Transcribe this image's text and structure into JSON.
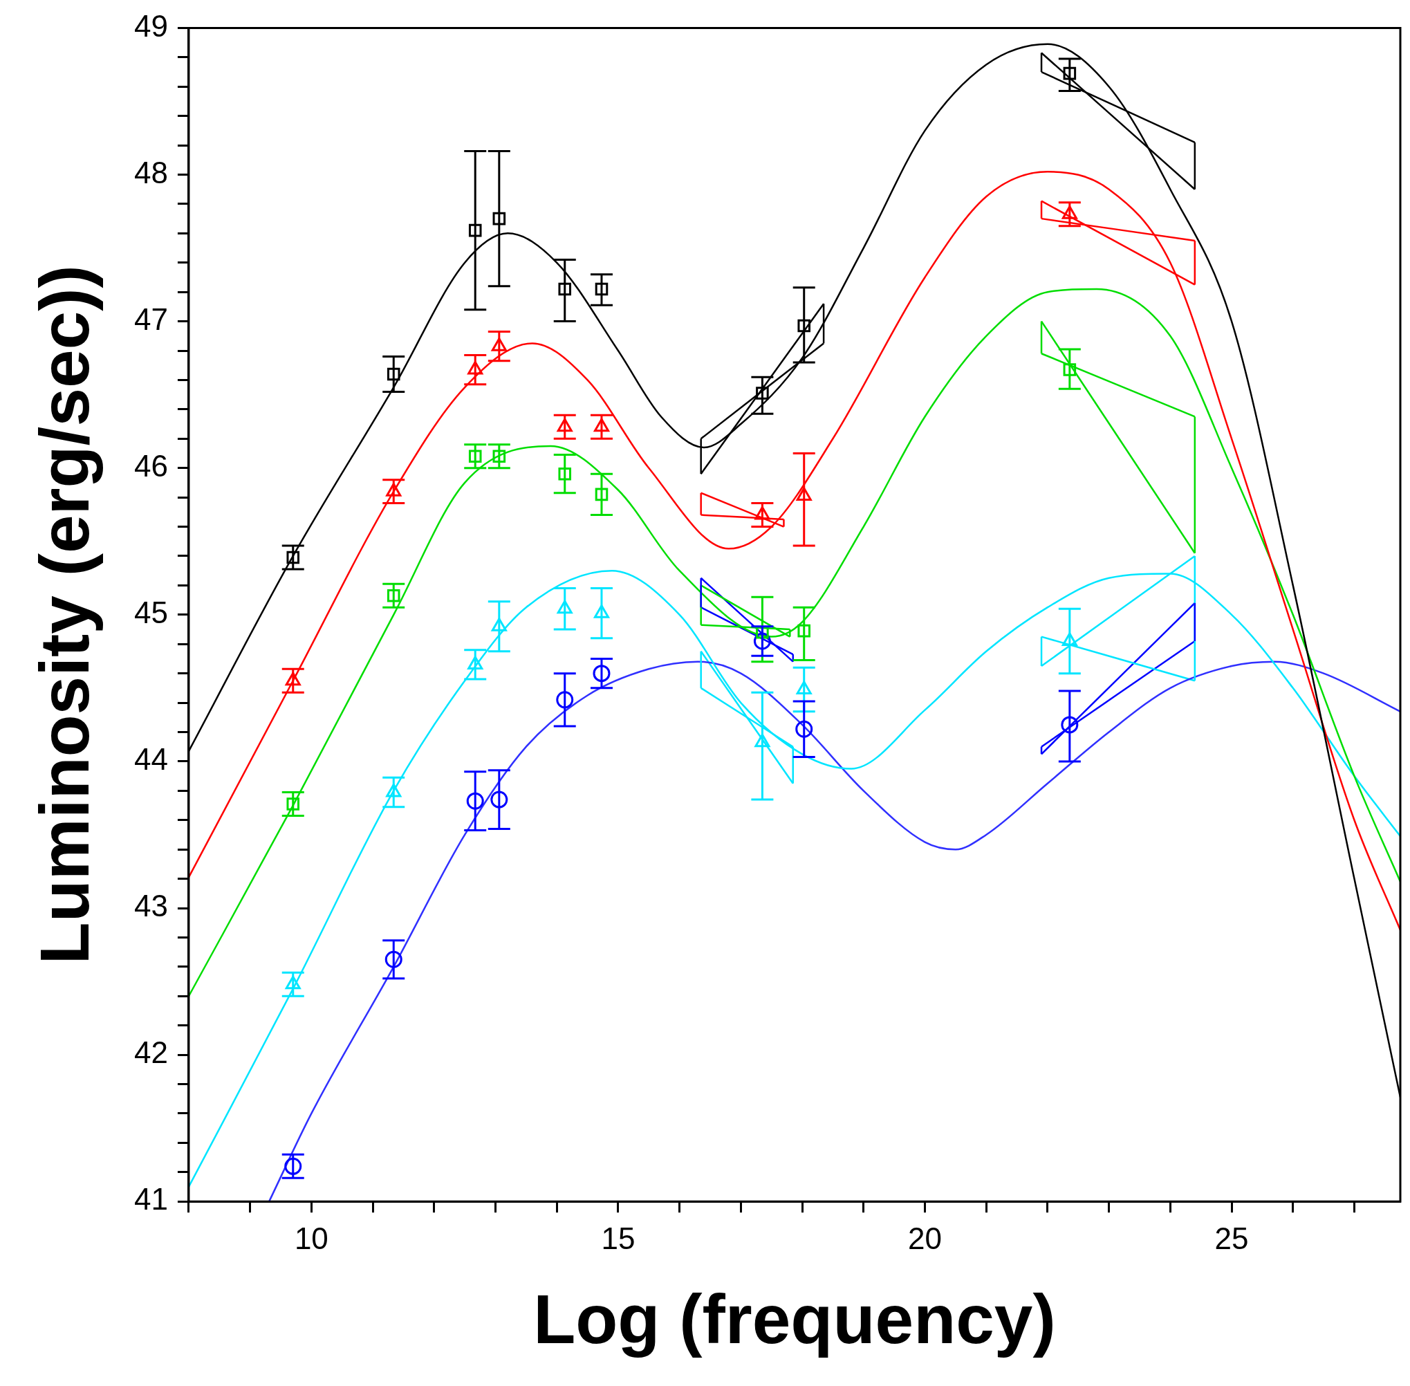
{
  "chart_data": {
    "type": "scatter",
    "xlabel": "Log (frequency)",
    "ylabel": "Luminosity (erg/sec))",
    "xlim": [
      8,
      27.75
    ],
    "ylim": [
      41,
      49
    ],
    "xticks": [
      {
        "value": 8,
        "label": null
      },
      {
        "value": 9,
        "label": null
      },
      10,
      {
        "value": 11,
        "label": null
      },
      {
        "value": 12,
        "label": null
      },
      {
        "value": 13,
        "label": null
      },
      {
        "value": 14,
        "label": null
      },
      15,
      {
        "value": 16,
        "label": null
      },
      {
        "value": 17,
        "label": null
      },
      {
        "value": 18,
        "label": null
      },
      {
        "value": 19,
        "label": null
      },
      20,
      {
        "value": 21,
        "label": null
      },
      {
        "value": 22,
        "label": null
      },
      {
        "value": 23,
        "label": null
      },
      {
        "value": 24,
        "label": null
      },
      25,
      {
        "value": 26,
        "label": null
      },
      {
        "value": 27,
        "label": null
      }
    ],
    "yticks": [
      41,
      {
        "value": 41.2,
        "label": null
      },
      {
        "value": 41.4,
        "label": null
      },
      {
        "value": 41.6,
        "label": null
      },
      {
        "value": 41.8,
        "label": null
      },
      42,
      {
        "value": 42.2,
        "label": null
      },
      {
        "value": 42.4,
        "label": null
      },
      {
        "value": 42.6,
        "label": null
      },
      {
        "value": 42.8,
        "label": null
      },
      43,
      {
        "value": 43.2,
        "label": null
      },
      {
        "value": 43.4,
        "label": null
      },
      {
        "value": 43.6,
        "label": null
      },
      {
        "value": 43.8,
        "label": null
      },
      44,
      {
        "value": 44.2,
        "label": null
      },
      {
        "value": 44.4,
        "label": null
      },
      {
        "value": 44.6,
        "label": null
      },
      {
        "value": 44.8,
        "label": null
      },
      45,
      {
        "value": 45.2,
        "label": null
      },
      {
        "value": 45.4,
        "label": null
      },
      {
        "value": 45.6,
        "label": null
      },
      {
        "value": 45.8,
        "label": null
      },
      46,
      {
        "value": 46.2,
        "label": null
      },
      {
        "value": 46.4,
        "label": null
      },
      {
        "value": 46.6,
        "label": null
      },
      {
        "value": 46.8,
        "label": null
      },
      47,
      {
        "value": 47.2,
        "label": null
      },
      {
        "value": 47.4,
        "label": null
      },
      {
        "value": 47.6,
        "label": null
      },
      {
        "value": 47.8,
        "label": null
      },
      48,
      {
        "value": 48.2,
        "label": null
      },
      {
        "value": 48.4,
        "label": null
      },
      {
        "value": 48.6,
        "label": null
      },
      {
        "value": 48.8,
        "label": null
      },
      49
    ],
    "x": [
      9.7,
      11.34,
      12.67,
      13.06,
      14.13,
      14.73,
      17.35,
      18.03,
      22.36
    ],
    "grid": false,
    "legend": false,
    "series": [
      {
        "type": "line",
        "color": "#000000",
        "x": [
          8,
          9.7,
          11.34,
          12.5,
          13.2,
          14,
          15,
          15.7,
          16.4,
          17,
          18,
          19,
          20,
          21,
          22,
          23,
          24,
          25,
          26,
          27,
          27.75
        ],
        "values": [
          44.07,
          45.4,
          46.55,
          47.4,
          47.6,
          47.4,
          46.8,
          46.35,
          46.14,
          46.3,
          46.75,
          47.5,
          48.3,
          48.75,
          48.89,
          48.6,
          47.9,
          47,
          45.2,
          43.2,
          41.71
        ]
      },
      {
        "type": "line",
        "color": "#ff0000",
        "x": [
          8,
          9.7,
          11.34,
          12.5,
          13.6,
          14.5,
          15.5,
          16.8,
          17.5,
          18.5,
          20,
          21,
          22,
          23,
          24,
          25,
          26,
          27,
          27.75
        ],
        "values": [
          43.21,
          44.55,
          45.84,
          46.55,
          46.85,
          46.6,
          46,
          45.45,
          45.6,
          46.2,
          47.3,
          47.85,
          48.02,
          47.9,
          47.4,
          46.2,
          44.9,
          43.6,
          42.85
        ]
      },
      {
        "type": "line",
        "color": "#00dd00",
        "x": [
          8,
          9.7,
          11.34,
          12.5,
          13.9,
          15,
          16,
          17.5,
          18,
          19,
          20,
          21,
          22,
          22.8,
          24,
          25,
          26,
          27,
          27.75
        ],
        "values": [
          42.4,
          43.7,
          45,
          45.9,
          46.15,
          45.85,
          45.3,
          44.85,
          44.95,
          45.6,
          46.35,
          46.9,
          47.2,
          47.22,
          46.9,
          46,
          45,
          43.9,
          43.18
        ]
      },
      {
        "type": "line",
        "color": "#00e5ff",
        "x": [
          8,
          9.7,
          11.34,
          12.5,
          13.5,
          14.9,
          16,
          17,
          18,
          18.8,
          20,
          21,
          22,
          23,
          24,
          25,
          26,
          27,
          27.75
        ],
        "values": [
          41.1,
          42.45,
          43.8,
          44.55,
          45.05,
          45.3,
          45,
          44.4,
          44.05,
          43.95,
          44.35,
          44.75,
          45.05,
          45.25,
          45.28,
          45,
          44.5,
          43.9,
          43.49
        ]
      },
      {
        "type": "line",
        "color": "#3030ff",
        "x": [
          9.31,
          10,
          11.34,
          12.5,
          13.5,
          14.5,
          15.5,
          16.3,
          17,
          18,
          19,
          20,
          20.5,
          21,
          22,
          23,
          24,
          25,
          25.7,
          26.5,
          27.75
        ],
        "values": [
          41,
          41.6,
          42.6,
          43.5,
          44.1,
          44.45,
          44.63,
          44.68,
          44.6,
          44.25,
          43.8,
          43.45,
          43.4,
          43.5,
          43.85,
          44.2,
          44.5,
          44.65,
          44.68,
          44.6,
          44.34
        ]
      },
      {
        "type": "line",
        "color": "#000000",
        "x": [
          16.35,
          18.35
        ],
        "values": [
          46.2,
          46.85
        ],
        "errors": [
          [
            45.96,
            46.2
          ],
          [
            46.85,
            47.12
          ]
        ]
      },
      {
        "type": "line",
        "color": "#000000",
        "x": [
          16.35,
          18.35
        ],
        "values": [
          45.96,
          47.12
        ]
      },
      {
        "type": "line",
        "color": "#000000",
        "x": [
          21.9,
          24.4
        ],
        "values": [
          48.83,
          47.9
        ],
        "errors": [
          [
            48.7,
            48.83
          ],
          [
            47.9,
            48.22
          ]
        ]
      },
      {
        "type": "line",
        "color": "#000000",
        "x": [
          21.9,
          24.4
        ],
        "values": [
          48.7,
          48.22
        ]
      },
      {
        "type": "line",
        "color": "#ff0000",
        "x": [
          16.35,
          17.7
        ],
        "values": [
          45.83,
          45.6
        ],
        "errors": [
          [
            45.68,
            45.83
          ],
          [
            45.6,
            45.65
          ]
        ]
      },
      {
        "type": "line",
        "color": "#ff0000",
        "x": [
          16.35,
          17.7
        ],
        "values": [
          45.68,
          45.65
        ]
      },
      {
        "type": "line",
        "color": "#ff0000",
        "x": [
          21.9,
          24.4
        ],
        "values": [
          47.82,
          47.25
        ],
        "errors": [
          [
            47.7,
            47.82
          ],
          [
            47.25,
            47.55
          ]
        ]
      },
      {
        "type": "line",
        "color": "#ff0000",
        "x": [
          21.9,
          24.4
        ],
        "values": [
          47.7,
          47.55
        ]
      },
      {
        "type": "line",
        "color": "#00dd00",
        "x": [
          16.35,
          17.8
        ],
        "values": [
          45.2,
          44.85
        ],
        "errors": [
          [
            44.93,
            45.2
          ],
          [
            44.85,
            44.9
          ]
        ]
      },
      {
        "type": "line",
        "color": "#00dd00",
        "x": [
          16.35,
          17.8
        ],
        "values": [
          44.93,
          44.9
        ]
      },
      {
        "type": "line",
        "color": "#00dd00",
        "x": [
          21.9,
          24.4
        ],
        "values": [
          47,
          45.42
        ],
        "errors": [
          [
            46.78,
            47
          ],
          [
            45.42,
            46.35
          ]
        ]
      },
      {
        "type": "line",
        "color": "#00dd00",
        "x": [
          21.9,
          24.4
        ],
        "values": [
          46.78,
          46.35
        ]
      },
      {
        "type": "line",
        "color": "#00e5ff",
        "x": [
          16.35,
          17.85
        ],
        "values": [
          44.75,
          43.85
        ],
        "errors": [
          [
            44.5,
            44.75
          ],
          [
            43.85,
            44.1
          ]
        ]
      },
      {
        "type": "line",
        "color": "#00e5ff",
        "x": [
          16.35,
          17.85
        ],
        "values": [
          44.5,
          44.1
        ]
      },
      {
        "type": "line",
        "color": "#00e5ff",
        "x": [
          21.9,
          24.4
        ],
        "values": [
          44.85,
          44.55
        ],
        "errors": [
          [
            44.65,
            44.85
          ],
          [
            44.55,
            45.4
          ]
        ]
      },
      {
        "type": "line",
        "color": "#00e5ff",
        "x": [
          21.9,
          24.4
        ],
        "values": [
          44.65,
          45.4
        ]
      },
      {
        "type": "line",
        "color": "#0000ff",
        "x": [
          16.35,
          17.85
        ],
        "values": [
          45.25,
          44.68
        ],
        "errors": [
          [
            45.05,
            45.25
          ],
          [
            44.68,
            44.73
          ]
        ]
      },
      {
        "type": "line",
        "color": "#0000ff",
        "x": [
          16.35,
          17.85
        ],
        "values": [
          45.05,
          44.73
        ]
      },
      {
        "type": "line",
        "color": "#0000ff",
        "x": [
          21.9,
          24.4
        ],
        "values": [
          44.1,
          44.82
        ],
        "errors": [
          [
            44.05,
            44.1
          ],
          [
            44.82,
            45.08
          ]
        ]
      },
      {
        "type": "line",
        "color": "#0000ff",
        "x": [
          21.9,
          24.4
        ],
        "values": [
          44.05,
          45.08
        ]
      },
      {
        "color": "#000000",
        "marker": "square",
        "values": [
          45.39,
          46.64,
          47.62,
          47.7,
          47.22,
          47.22,
          46.51,
          46.97,
          48.69
        ],
        "errors": [
          0.08,
          0.12,
          [
            47.08,
            48.16
          ],
          [
            47.24,
            48.16
          ],
          [
            47.0,
            47.42
          ],
          [
            47.11,
            47.32
          ],
          [
            46.37,
            46.62
          ],
          [
            46.72,
            47.23
          ],
          [
            48.57,
            48.79
          ]
        ]
      },
      {
        "color": "#ff0000",
        "marker": "triangle",
        "values": [
          44.55,
          45.84,
          46.67,
          46.83,
          46.28,
          46.28,
          45.68,
          45.81,
          47.73
        ],
        "errors": [
          0.08,
          0.08,
          0.1,
          0.1,
          0.08,
          0.08,
          0.08,
          [
            45.47,
            46.1
          ],
          0.08
        ]
      },
      {
        "color": "#00dd00",
        "marker": "square",
        "values": [
          43.71,
          45.13,
          46.08,
          46.08,
          45.96,
          45.82,
          44.88,
          44.89,
          46.67
        ],
        "errors": [
          0.08,
          0.08,
          0.08,
          0.08,
          0.13,
          0.14,
          [
            44.68,
            45.12
          ],
          [
            44.69,
            45.05
          ],
          [
            46.54,
            46.81
          ]
        ]
      },
      {
        "color": "#00e5ff",
        "marker": "triangle",
        "values": [
          42.48,
          43.79,
          44.66,
          44.92,
          45.04,
          45.01,
          44.13,
          44.49,
          44.82
        ],
        "errors": [
          0.08,
          0.1,
          0.1,
          0.17,
          0.14,
          0.17,
          [
            43.74,
            44.47
          ],
          0.15,
          [
            44.6,
            45.04
          ]
        ]
      },
      {
        "color": "#0000ff",
        "marker": "circle",
        "values": [
          41.24,
          42.65,
          43.73,
          43.74,
          44.42,
          44.6,
          44.82,
          44.22,
          44.25
        ],
        "errors": [
          0.08,
          0.13,
          0.2,
          0.2,
          0.18,
          0.1,
          0.1,
          0.19,
          [
            44.0,
            44.48
          ]
        ]
      }
    ]
  }
}
